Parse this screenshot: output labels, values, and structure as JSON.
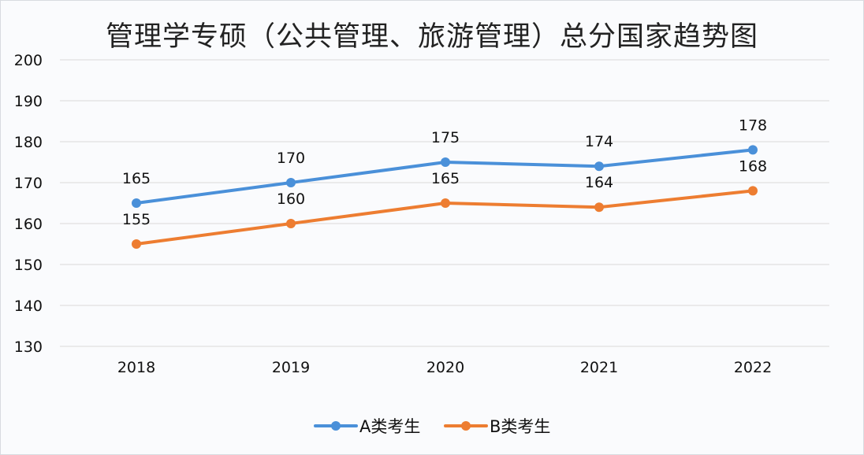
{
  "chart_data": {
    "type": "line",
    "title": "管理学专硕（公共管理、旅游管理）总分国家趋势图",
    "xlabel": "",
    "ylabel": "",
    "categories": [
      "2018",
      "2019",
      "2020",
      "2021",
      "2022"
    ],
    "ylim": [
      130,
      200
    ],
    "yticks": [
      "130",
      "140",
      "150",
      "160",
      "170",
      "180",
      "190",
      "200"
    ],
    "grid": true,
    "legend_position": "bottom",
    "series": [
      {
        "name": "A类考生",
        "color": "#4a90d9",
        "values": [
          165,
          170,
          175,
          174,
          178
        ]
      },
      {
        "name": "B类考生",
        "color": "#ed7d31",
        "values": [
          155,
          160,
          165,
          164,
          168
        ]
      }
    ]
  }
}
